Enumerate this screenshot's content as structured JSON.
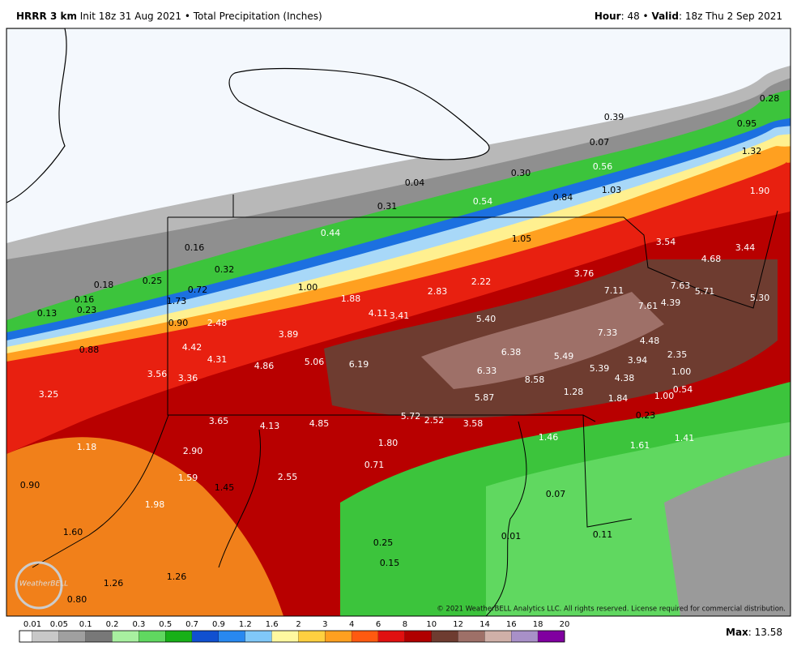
{
  "header": {
    "left": [
      "HRRR 3 km",
      " Init 18z 31 Aug 2021 • Total Precipitation (Inches)"
    ],
    "right": [
      "Hour",
      ": 48 • ",
      "Valid",
      ": 18z Thu 2 Sep 2021"
    ]
  },
  "map": {
    "labels": [
      "0.28",
      "0.39",
      "0.95",
      "0.07",
      "1.32",
      "0.56",
      "0.30",
      "0.04",
      "1.03",
      "1.90",
      "0.84",
      "0.54",
      "0.31",
      "1.05",
      "3.54",
      "0.44",
      "3.44",
      "0.16",
      "4.68",
      "0.32",
      "3.76",
      "2.22",
      "7.63",
      "1.00",
      "0.18",
      "0.25",
      "0.72",
      "7.11",
      "5.71",
      "2.83",
      "0.16",
      "1.73",
      "1.88",
      "4.39",
      "5.30",
      "7.61",
      "0.23",
      "0.13",
      "4.11",
      "3.41",
      "5.40",
      "0.90",
      "2.48",
      "3.89",
      "7.33",
      "4.48",
      "0.88",
      "4.42",
      "6.38",
      "5.49",
      "3.94",
      "2.35",
      "4.31",
      "5.06",
      "6.19",
      "4.86",
      "3.56",
      "5.39",
      "6.33",
      "1.00",
      "3.36",
      "8.58",
      "4.38",
      "0.54",
      "3.25",
      "1.28",
      "5.87",
      "1.00",
      "1.84",
      "0.23",
      "5.72",
      "2.52",
      "3.58",
      "3.65",
      "4.13",
      "4.85",
      "1.46",
      "1.41",
      "1.80",
      "1.61",
      "1.18",
      "2.90",
      "0.71",
      "1.59",
      "2.55",
      "1.45",
      "0.90",
      "1.98",
      "0.07",
      "1.60",
      "0.25",
      "0.01",
      "0.11",
      "0.15",
      "1.26",
      "1.26",
      "0.80"
    ],
    "copyright": "© 2021 WeatherBELL Analytics LLC. All rights reserved. License required for commercial distribution.",
    "logo": "WeatherBELL"
  },
  "legend": {
    "levels": [
      0.01,
      0.05,
      0.1,
      0.2,
      0.3,
      0.5,
      0.7,
      0.9,
      1.2,
      1.6,
      2,
      3,
      4,
      6,
      8,
      10,
      12,
      14,
      16,
      18,
      20
    ],
    "colors": [
      "#ffffff",
      "#c8c8c8",
      "#a0a0a0",
      "#787878",
      "#a8f0a0",
      "#60d860",
      "#18b018",
      "#1050d0",
      "#2888f0",
      "#80c8f8",
      "#fff8a0",
      "#ffd040",
      "#ffa020",
      "#ff5a10",
      "#e01010",
      "#b00000",
      "#6e3c30",
      "#9e7068",
      "#d0b0a8",
      "#a890c8",
      "#8000a0"
    ]
  },
  "max": [
    "Max",
    ": 13.58"
  ]
}
